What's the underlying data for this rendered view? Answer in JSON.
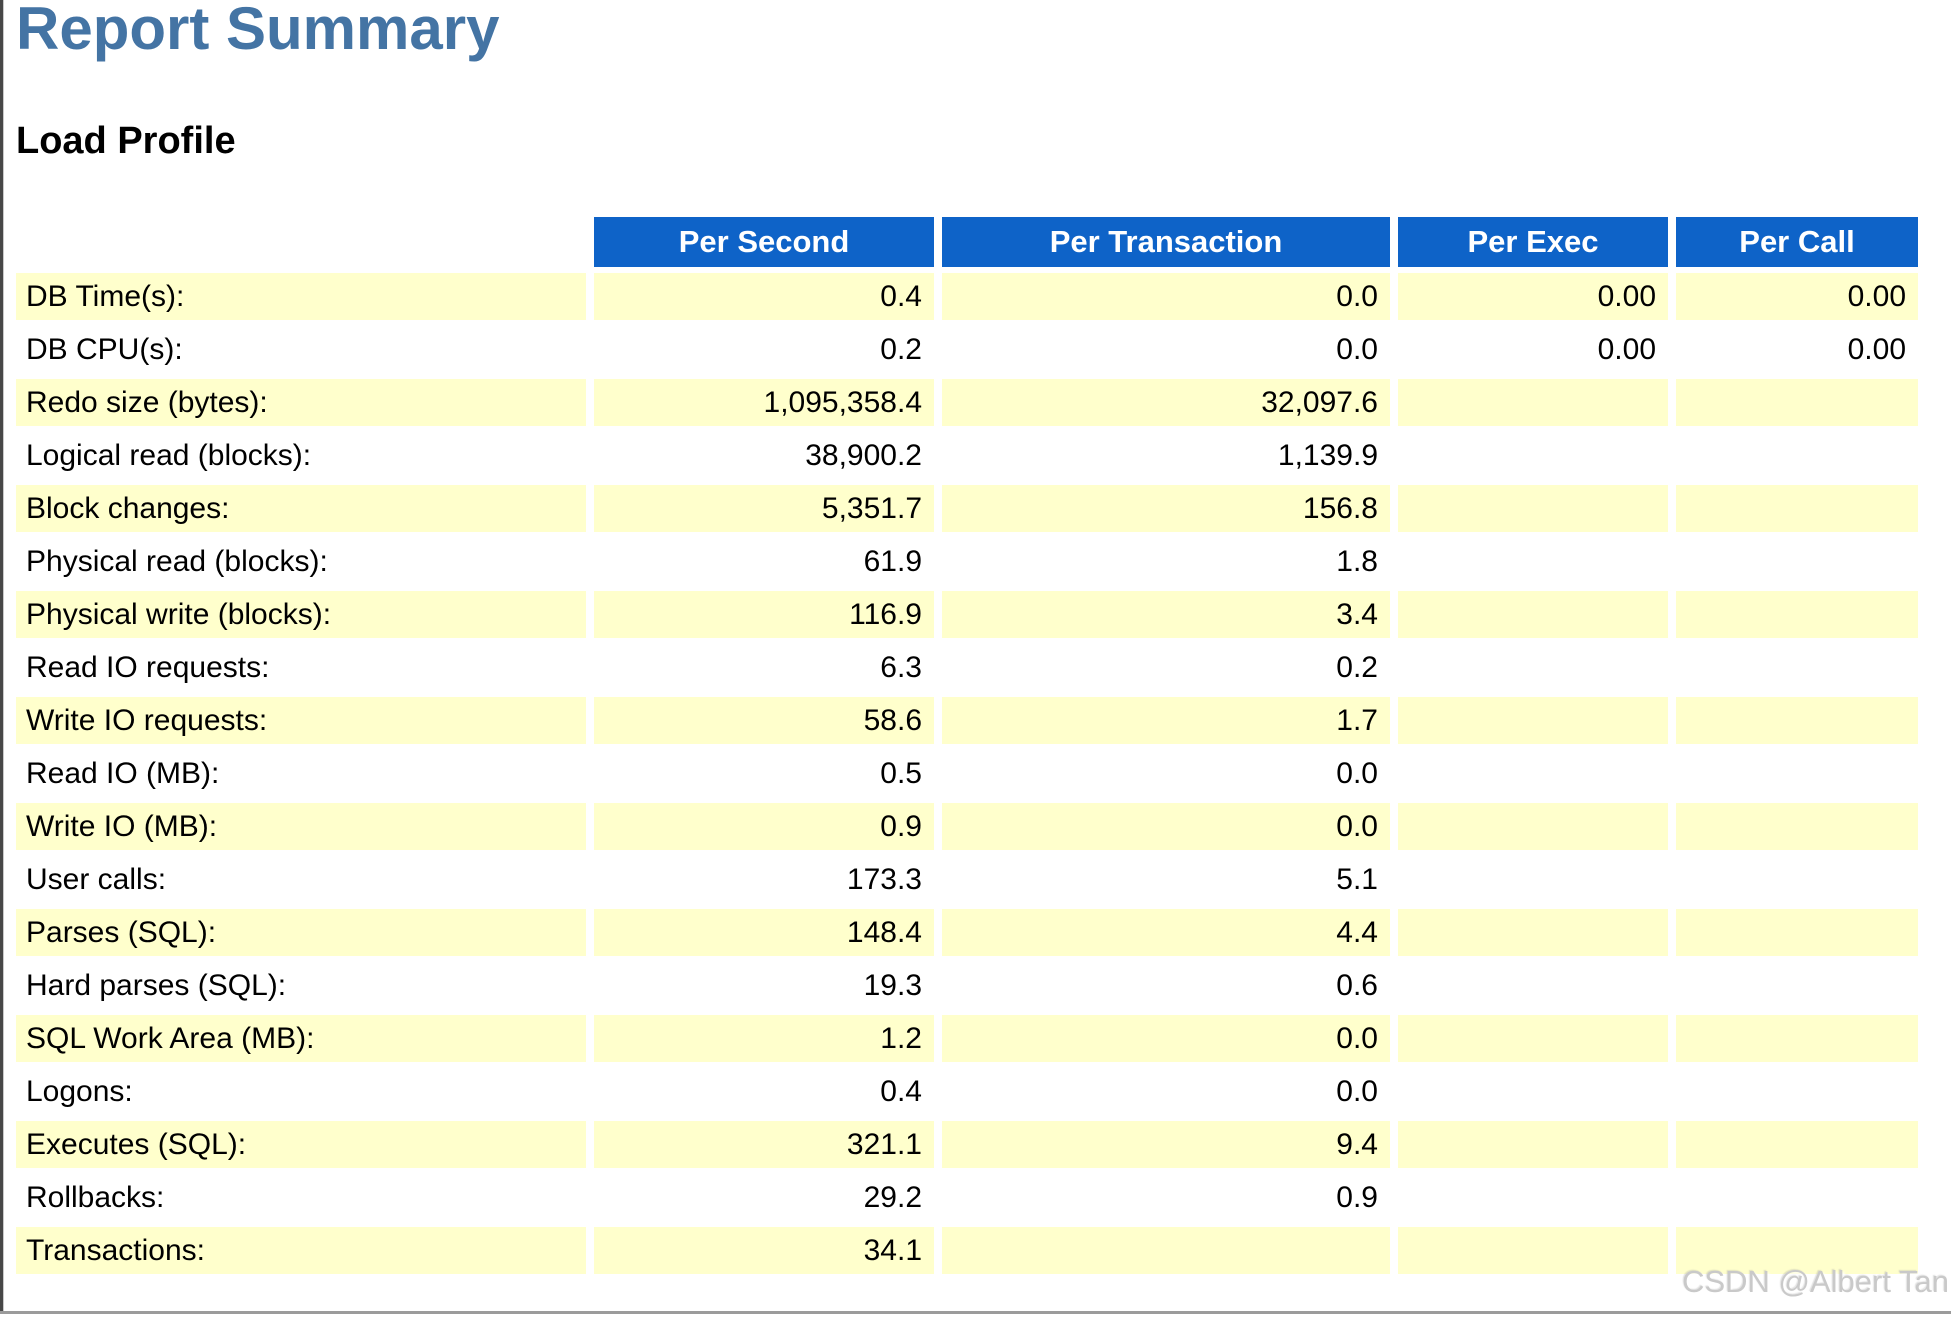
{
  "page": {
    "title": "Report Summary",
    "section_heading": "Load Profile",
    "watermark": "CSDN @Albert Tan"
  },
  "colors": {
    "title_blue": "#4474a4",
    "header_bg": "#0e63c8",
    "header_text": "#ffffff",
    "row_alt_yellow": "#ffffcc",
    "row_white": "#ffffff",
    "body_text": "#000000",
    "watermark_gray": "#c9c9c9"
  },
  "load_profile_table": {
    "corner_header": "",
    "columns": [
      "Per Second",
      "Per Transaction",
      "Per Exec",
      "Per Call"
    ],
    "rows": [
      {
        "label": "DB Time(s):",
        "values": [
          "0.4",
          "0.0",
          "0.00",
          "0.00"
        ]
      },
      {
        "label": "DB CPU(s):",
        "values": [
          "0.2",
          "0.0",
          "0.00",
          "0.00"
        ]
      },
      {
        "label": "Redo size (bytes):",
        "values": [
          "1,095,358.4",
          "32,097.6",
          "",
          ""
        ]
      },
      {
        "label": "Logical read (blocks):",
        "values": [
          "38,900.2",
          "1,139.9",
          "",
          ""
        ]
      },
      {
        "label": "Block changes:",
        "values": [
          "5,351.7",
          "156.8",
          "",
          ""
        ]
      },
      {
        "label": "Physical read (blocks):",
        "values": [
          "61.9",
          "1.8",
          "",
          ""
        ]
      },
      {
        "label": "Physical write (blocks):",
        "values": [
          "116.9",
          "3.4",
          "",
          ""
        ]
      },
      {
        "label": "Read IO requests:",
        "values": [
          "6.3",
          "0.2",
          "",
          ""
        ]
      },
      {
        "label": "Write IO requests:",
        "values": [
          "58.6",
          "1.7",
          "",
          ""
        ]
      },
      {
        "label": "Read IO (MB):",
        "values": [
          "0.5",
          "0.0",
          "",
          ""
        ]
      },
      {
        "label": "Write IO (MB):",
        "values": [
          "0.9",
          "0.0",
          "",
          ""
        ]
      },
      {
        "label": "User calls:",
        "values": [
          "173.3",
          "5.1",
          "",
          ""
        ]
      },
      {
        "label": "Parses (SQL):",
        "values": [
          "148.4",
          "4.4",
          "",
          ""
        ]
      },
      {
        "label": "Hard parses (SQL):",
        "values": [
          "19.3",
          "0.6",
          "",
          ""
        ]
      },
      {
        "label": "SQL Work Area (MB):",
        "values": [
          "1.2",
          "0.0",
          "",
          ""
        ]
      },
      {
        "label": "Logons:",
        "values": [
          "0.4",
          "0.0",
          "",
          ""
        ]
      },
      {
        "label": "Executes (SQL):",
        "values": [
          "321.1",
          "9.4",
          "",
          ""
        ]
      },
      {
        "label": "Rollbacks:",
        "values": [
          "29.2",
          "0.9",
          "",
          ""
        ]
      },
      {
        "label": "Transactions:",
        "values": [
          "34.1",
          "",
          "",
          ""
        ]
      }
    ]
  }
}
